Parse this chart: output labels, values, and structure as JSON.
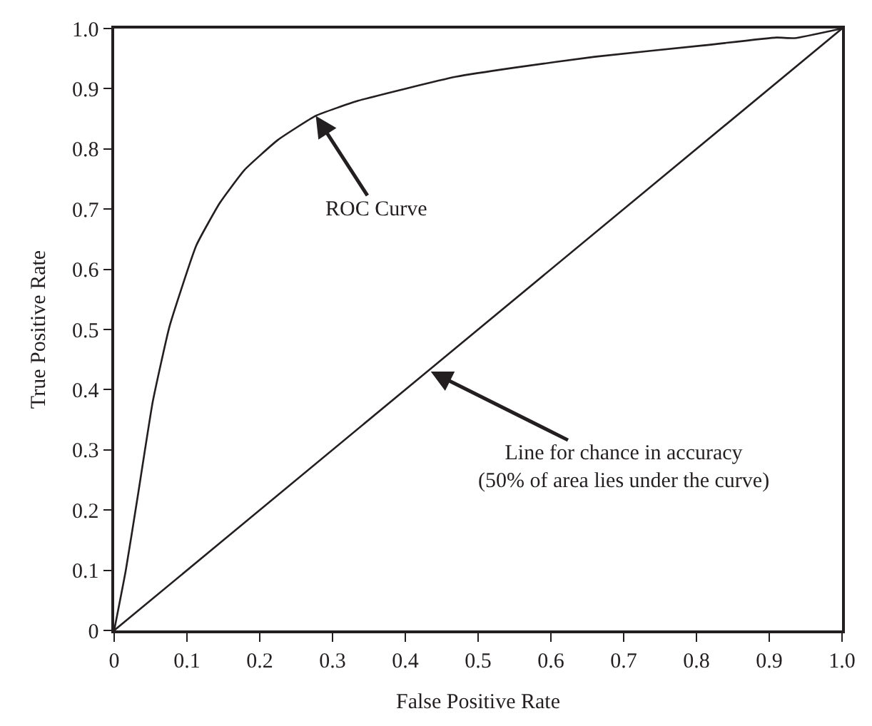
{
  "chart_data": {
    "type": "line",
    "xlabel": "False Positive Rate",
    "ylabel": "True Positive Rate",
    "series": [
      {
        "color": "#231f20",
        "x": [
          0,
          0.016,
          0.032,
          0.053,
          0.076,
          0.113,
          0.145,
          0.179,
          0.225,
          0.277,
          0.335,
          0.4,
          0.47,
          0.55,
          0.66,
          0.81,
          0.91,
          0.935,
          1.0
        ],
        "values": [
          0,
          0.1,
          0.22,
          0.38,
          0.505,
          0.64,
          0.71,
          0.765,
          0.815,
          0.855,
          0.88,
          0.9,
          0.92,
          0.935,
          0.953,
          0.972,
          0.985,
          0.984,
          1.0
        ]
      },
      {
        "color": "#231f20",
        "x": [
          0,
          1
        ],
        "values": [
          0,
          1
        ]
      }
    ],
    "xlim": [
      0,
      1
    ],
    "ylim": [
      0,
      1
    ],
    "xticks": [
      0,
      0.1,
      0.2,
      0.3,
      0.4,
      0.5,
      0.6,
      0.7,
      0.8,
      0.9,
      {
        "value": 1,
        "label": "1.0"
      }
    ],
    "yticks": [
      0,
      0.1,
      0.2,
      0.3,
      0.4,
      0.5,
      0.6,
      0.7,
      0.8,
      0.9,
      {
        "value": 1,
        "label": "1.0"
      }
    ],
    "marker": "none",
    "line_style": "solid",
    "annotations": [
      {
        "text": "ROC Curve",
        "x": 0.277,
        "y": 0.855
      },
      {
        "text": "Line for chance in accuracy\n(50% of area lies under the curve)",
        "x": 0.435,
        "y": 0.43
      }
    ]
  }
}
